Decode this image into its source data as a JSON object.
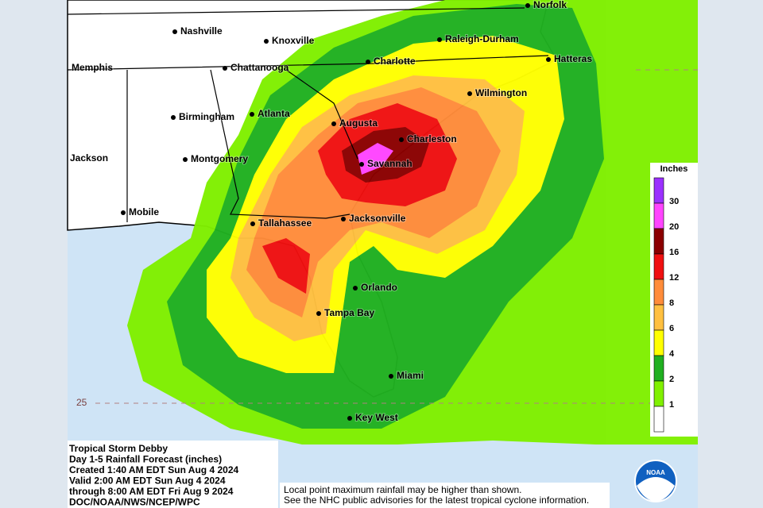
{
  "map": {
    "cities": [
      "Norfolk",
      "Nashville",
      "Knoxville",
      "Raleigh-Durham",
      "Memphis",
      "Chattanooga",
      "Charlotte",
      "Hatteras",
      "Wilmington",
      "Birmingham",
      "Atlanta",
      "Augusta",
      "Charleston",
      "Jackson",
      "Montgomery",
      "Savannah",
      "Mobile",
      "Tallahassee",
      "Jacksonville",
      "Orlando",
      "Tampa Bay",
      "Miami",
      "Key West"
    ],
    "latitude_label": "25"
  },
  "legend": {
    "title": "Inches",
    "colors": [
      "#9b30ff",
      "#ff44ff",
      "#8b0000",
      "#f01010",
      "#ff8c3a",
      "#ffc040",
      "#ffff00",
      "#20b020",
      "#80f000",
      "#ffffff"
    ],
    "labels": [
      30,
      20,
      16,
      12,
      8,
      6,
      4,
      2,
      1
    ]
  },
  "info": [
    "Tropical Storm Debby",
    "Day 1-5 Rainfall Forecast (inches)",
    "Created 1:40 AM EDT Sun Aug 4 2024",
    "Valid 2:00 AM EDT Sun Aug 4 2024",
    "through 8:00 AM EDT Fri Aug 9 2024",
    "DOC/NOAA/NWS/NCEP/WPC"
  ],
  "note": [
    "Local point maximum rainfall may be higher than shown.",
    "See the NHC public advisories for the latest tropical cyclone information."
  ],
  "logo": "NOAA"
}
